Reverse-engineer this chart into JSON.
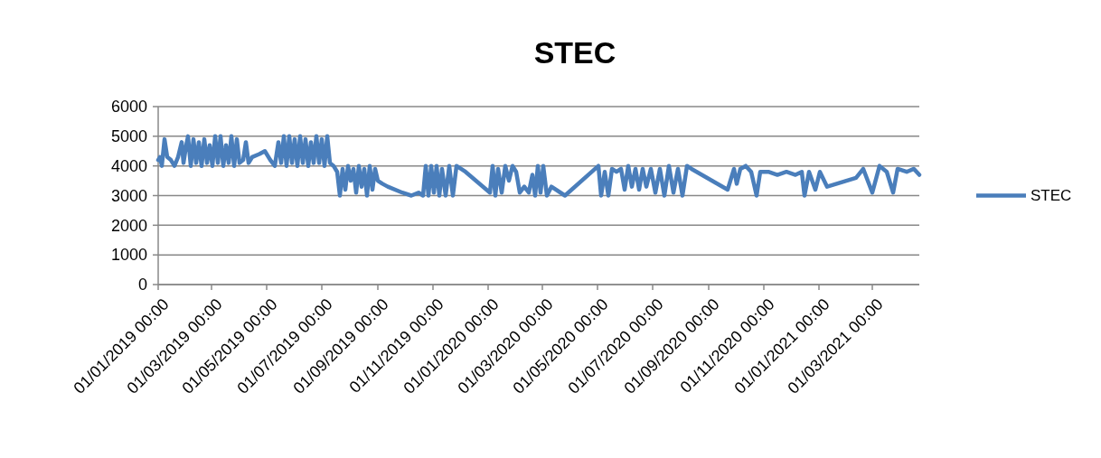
{
  "chart_data": {
    "type": "line",
    "title": "STEC",
    "legend": "right",
    "grid": "y",
    "marker": "none",
    "line_style": "solid",
    "xlim": [
      "2019-01-01",
      "2021-04-22"
    ],
    "xticks": [
      {
        "value": "2019-01-01",
        "label": "01/01/2019 00:00"
      },
      {
        "value": "2019-03-01",
        "label": "01/03/2019 00:00"
      },
      {
        "value": "2019-05-01",
        "label": "01/05/2019 00:00"
      },
      {
        "value": "2019-07-01",
        "label": "01/07/2019 00:00"
      },
      {
        "value": "2019-09-01",
        "label": "01/09/2019 00:00"
      },
      {
        "value": "2019-11-01",
        "label": "01/11/2019 00:00"
      },
      {
        "value": "2020-01-01",
        "label": "01/01/2020 00:00"
      },
      {
        "value": "2020-03-01",
        "label": "01/03/2020 00:00"
      },
      {
        "value": "2020-05-01",
        "label": "01/05/2020 00:00"
      },
      {
        "value": "2020-07-01",
        "label": "01/07/2020 00:00"
      },
      {
        "value": "2020-09-01",
        "label": "01/09/2020 00:00"
      },
      {
        "value": "2020-11-01",
        "label": "01/11/2020 00:00"
      },
      {
        "value": "2021-01-01",
        "label": "01/01/2021 00:00"
      },
      {
        "value": "2021-03-01",
        "label": "01/03/2021 00:00"
      }
    ],
    "ylim": [
      0,
      6000
    ],
    "yticks": [
      0,
      1000,
      2000,
      3000,
      4000,
      5000,
      6000
    ],
    "x": [
      "2019-01-01",
      "2019-01-03",
      "2019-01-05",
      "2019-01-08",
      "2019-01-11",
      "2019-01-15",
      "2019-01-19",
      "2019-01-23",
      "2019-01-27",
      "2019-01-29",
      "2019-02-01",
      "2019-02-03",
      "2019-02-06",
      "2019-02-09",
      "2019-02-12",
      "2019-02-15",
      "2019-02-18",
      "2019-02-21",
      "2019-02-24",
      "2019-02-27",
      "2019-03-02",
      "2019-03-05",
      "2019-03-08",
      "2019-03-11",
      "2019-03-14",
      "2019-03-17",
      "2019-03-20",
      "2019-03-23",
      "2019-03-26",
      "2019-03-29",
      "2019-04-01",
      "2019-04-05",
      "2019-04-08",
      "2019-04-11",
      "2019-04-15",
      "2019-04-23",
      "2019-04-29",
      "2019-05-05",
      "2019-05-10",
      "2019-05-14",
      "2019-05-17",
      "2019-05-20",
      "2019-05-23",
      "2019-05-26",
      "2019-05-29",
      "2019-06-01",
      "2019-06-04",
      "2019-06-07",
      "2019-06-10",
      "2019-06-13",
      "2019-06-16",
      "2019-06-19",
      "2019-06-22",
      "2019-06-25",
      "2019-06-28",
      "2019-07-01",
      "2019-07-04",
      "2019-07-07",
      "2019-07-10",
      "2019-07-14",
      "2019-07-18",
      "2019-07-21",
      "2019-07-24",
      "2019-07-27",
      "2019-07-30",
      "2019-08-02",
      "2019-08-05",
      "2019-08-08",
      "2019-08-11",
      "2019-08-14",
      "2019-08-17",
      "2019-08-20",
      "2019-08-23",
      "2019-08-26",
      "2019-08-29",
      "2019-09-01",
      "2019-09-06",
      "2019-09-12",
      "2019-09-28",
      "2019-10-08",
      "2019-10-16",
      "2019-10-21",
      "2019-10-24",
      "2019-10-27",
      "2019-10-30",
      "2019-11-02",
      "2019-11-05",
      "2019-11-08",
      "2019-11-11",
      "2019-11-15",
      "2019-11-19",
      "2019-11-23",
      "2019-11-27",
      "2019-12-02",
      "2019-12-07",
      "2020-01-03",
      "2020-01-06",
      "2020-01-09",
      "2020-01-12",
      "2020-01-16",
      "2020-01-20",
      "2020-01-24",
      "2020-01-28",
      "2020-02-01",
      "2020-02-05",
      "2020-02-10",
      "2020-02-15",
      "2020-02-19",
      "2020-02-22",
      "2020-02-25",
      "2020-02-28",
      "2020-03-02",
      "2020-03-06",
      "2020-03-11",
      "2020-03-26",
      "2020-05-02",
      "2020-05-05",
      "2020-05-09",
      "2020-05-13",
      "2020-05-17",
      "2020-05-22",
      "2020-05-27",
      "2020-05-31",
      "2020-06-04",
      "2020-06-08",
      "2020-06-12",
      "2020-06-16",
      "2020-06-20",
      "2020-06-24",
      "2020-06-29",
      "2020-07-04",
      "2020-07-09",
      "2020-07-14",
      "2020-07-19",
      "2020-07-24",
      "2020-07-29",
      "2020-08-03",
      "2020-08-08",
      "2020-08-13",
      "2020-09-22",
      "2020-09-29",
      "2020-10-02",
      "2020-10-06",
      "2020-10-12",
      "2020-10-18",
      "2020-10-24",
      "2020-10-28",
      "2020-11-06",
      "2020-11-16",
      "2020-11-26",
      "2020-12-06",
      "2020-12-13",
      "2020-12-16",
      "2020-12-21",
      "2020-12-28",
      "2021-01-02",
      "2021-01-10",
      "2021-02-11",
      "2021-02-19",
      "2021-03-01",
      "2021-03-09",
      "2021-03-17",
      "2021-03-24",
      "2021-03-29",
      "2021-04-08",
      "2021-04-16",
      "2021-04-22"
    ],
    "series": [
      {
        "name": "STEC",
        "color": "#4a7ebb",
        "values": [
          4200,
          4300,
          4000,
          4900,
          4300,
          4200,
          4000,
          4300,
          4800,
          4100,
          4700,
          5000,
          4000,
          4900,
          4100,
          4800,
          4000,
          4900,
          4100,
          4700,
          4000,
          5000,
          4100,
          5000,
          4000,
          4700,
          4100,
          5000,
          4000,
          4900,
          4100,
          4200,
          4800,
          4100,
          4300,
          4400,
          4500,
          4200,
          4000,
          4800,
          4100,
          5000,
          4000,
          5000,
          4100,
          4900,
          4000,
          5000,
          4100,
          4900,
          4000,
          4800,
          4100,
          5000,
          4100,
          4900,
          4000,
          5000,
          4100,
          4000,
          3800,
          3000,
          3900,
          3200,
          4000,
          3500,
          3900,
          3100,
          4000,
          3300,
          3900,
          3000,
          4000,
          3200,
          3900,
          3500,
          3400,
          3300,
          3100,
          3000,
          3100,
          3000,
          4000,
          3000,
          4000,
          3100,
          4000,
          3000,
          3900,
          3000,
          4000,
          3000,
          4000,
          3900,
          3800,
          3100,
          4000,
          3000,
          3900,
          3100,
          4000,
          3500,
          4000,
          3800,
          3100,
          3300,
          3100,
          3700,
          3000,
          4000,
          3100,
          4000,
          3000,
          3300,
          3000,
          4000,
          3000,
          3800,
          3000,
          3900,
          3800,
          3900,
          3200,
          4000,
          3300,
          3900,
          3200,
          3900,
          3300,
          3900,
          3100,
          3900,
          3000,
          4000,
          3100,
          3900,
          3000,
          4000,
          3900,
          3200,
          3900,
          3400,
          3900,
          4000,
          3800,
          3000,
          3800,
          3800,
          3700,
          3800,
          3700,
          3800,
          3000,
          3800,
          3200,
          3800,
          3300,
          3600,
          3900,
          3100,
          4000,
          3800,
          3100,
          3900,
          3800,
          3900,
          3700
        ]
      }
    ]
  }
}
